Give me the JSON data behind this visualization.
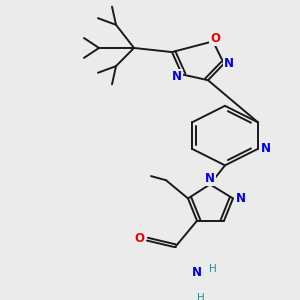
{
  "background_color": "#ebebeb",
  "atom_colors": {
    "N": "#0000ee",
    "O": "#ee0000",
    "C": "#1a1a1a",
    "H": "#2e8b8b"
  },
  "figsize": [
    3.0,
    3.0
  ],
  "dpi": 100
}
